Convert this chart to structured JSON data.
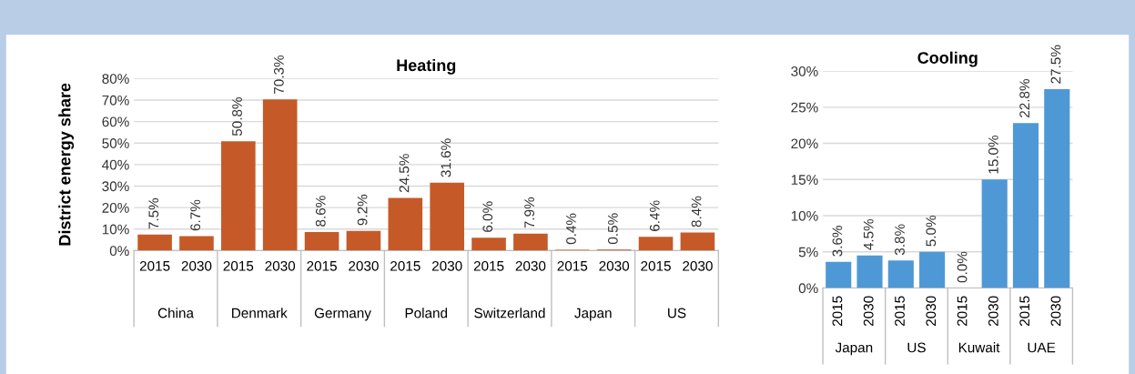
{
  "chart_data": [
    {
      "type": "bar",
      "title": "Heating",
      "ylabel": "District energy share",
      "categories": [
        "2015",
        "2030",
        "2015",
        "2030",
        "2015",
        "2030",
        "2015",
        "2030",
        "2015",
        "2030",
        "2015",
        "2030",
        "2015",
        "2030"
      ],
      "values": [
        7.5,
        6.7,
        50.8,
        70.3,
        8.6,
        9.2,
        24.5,
        31.6,
        6.0,
        7.9,
        0.4,
        0.5,
        6.4,
        8.4
      ],
      "value_labels": [
        "7.5%",
        "6.7%",
        "50.8%",
        "70.3%",
        "8.6%",
        "9.2%",
        "24.5%",
        "31.6%",
        "6.0%",
        "7.9%",
        "0.4%",
        "0.5%",
        "6.4%",
        "8.4%"
      ],
      "color": "#c55a28",
      "ylim": [
        0,
        80
      ],
      "yticks": [
        {
          "value": 0,
          "label": "0%"
        },
        {
          "value": 10,
          "label": "10%"
        },
        {
          "value": 20,
          "label": "20%"
        },
        {
          "value": 30,
          "label": "30%"
        },
        {
          "value": 40,
          "label": "40%"
        },
        {
          "value": 50,
          "label": "50%"
        },
        {
          "value": 60,
          "label": "60%"
        },
        {
          "value": 70,
          "label": "70%"
        },
        {
          "value": 80,
          "label": "80%"
        }
      ],
      "grid": "y",
      "annotations": [
        "China",
        "Denmark",
        "Germany",
        "Poland",
        "Switzerland",
        "Japan",
        "US"
      ]
    },
    {
      "type": "bar",
      "title": "Cooling",
      "categories": [
        "2015",
        "2030",
        "2015",
        "2030",
        "2015",
        "2030",
        "2015",
        "2030"
      ],
      "values": [
        3.6,
        4.5,
        3.8,
        5.0,
        0.0,
        15.0,
        22.8,
        27.5
      ],
      "value_labels": [
        "3.6%",
        "4.5%",
        "3.8%",
        "5.0%",
        "0.0%",
        "15.0%",
        "22.8%",
        "27.5%"
      ],
      "color": "#4f98d6",
      "ylim": [
        0,
        30
      ],
      "yticks": [
        {
          "value": 0,
          "label": "0%"
        },
        {
          "value": 5,
          "label": "5%"
        },
        {
          "value": 10,
          "label": "10%"
        },
        {
          "value": 15,
          "label": "15%"
        },
        {
          "value": 20,
          "label": "20%"
        },
        {
          "value": 25,
          "label": "25%"
        },
        {
          "value": 30,
          "label": "30%"
        }
      ],
      "grid": "y",
      "annotations": [
        "Japan",
        "US",
        "Kuwait",
        "UAE"
      ]
    }
  ]
}
